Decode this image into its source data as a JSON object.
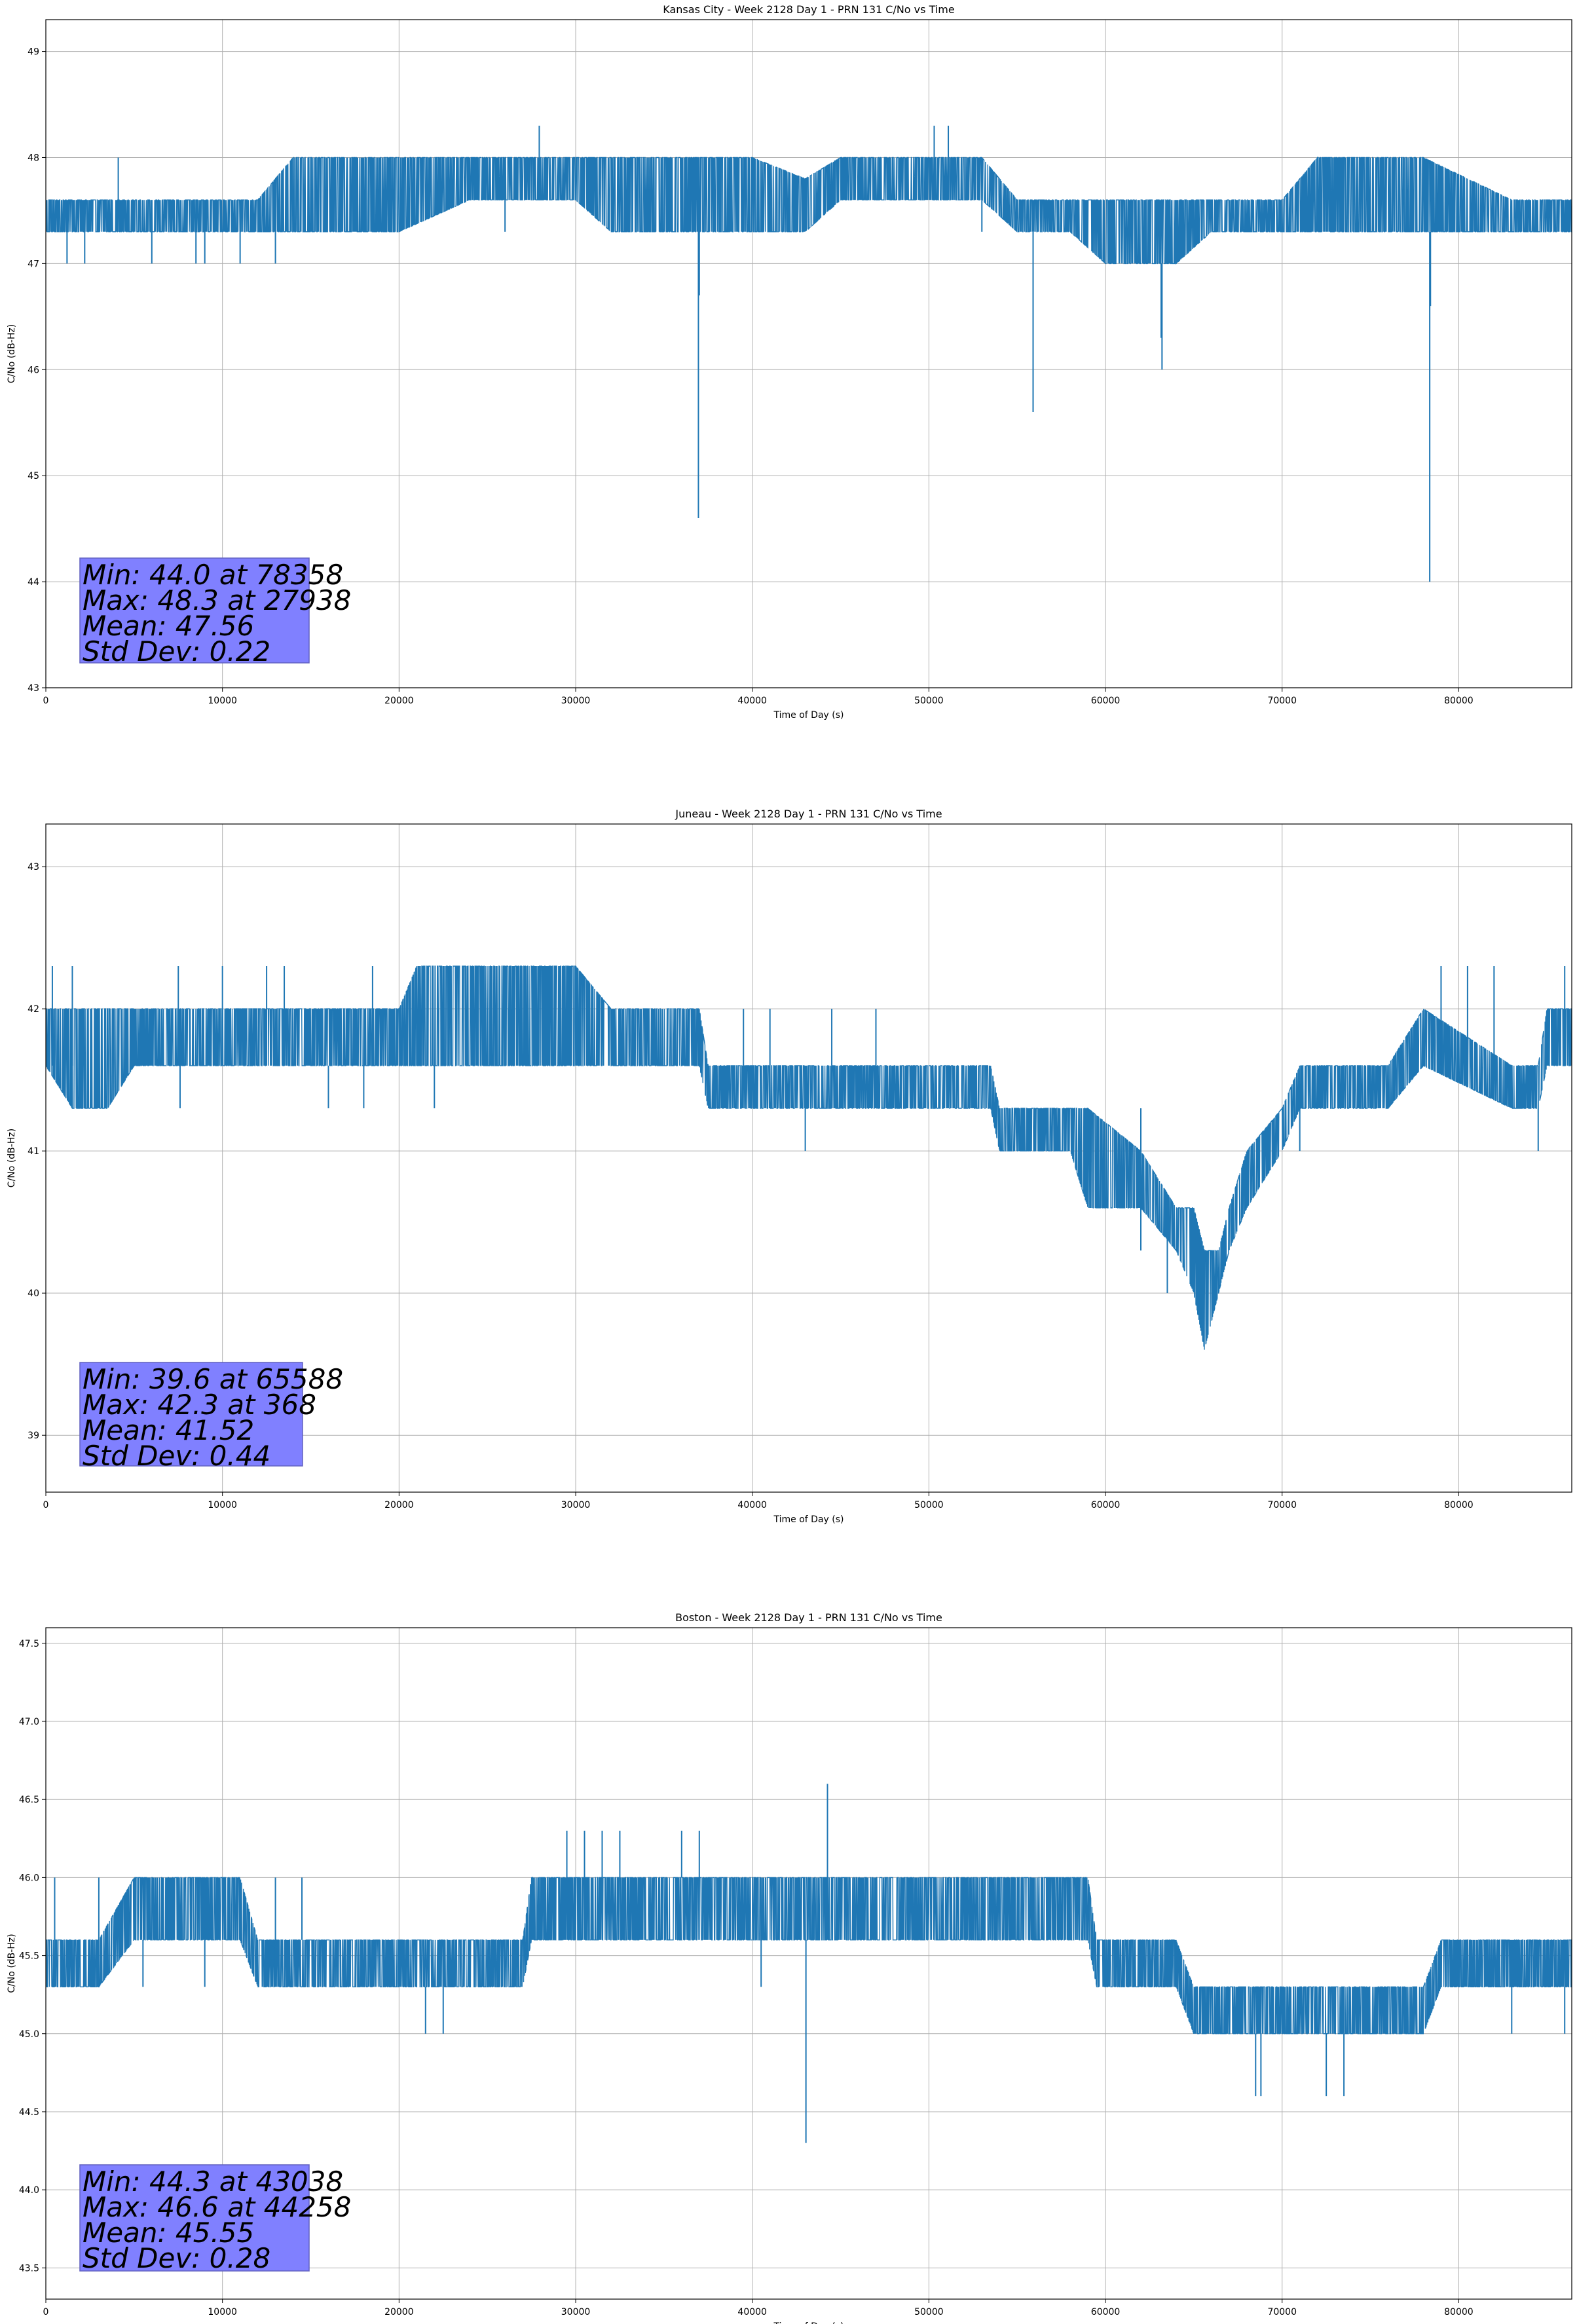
{
  "chart_data": [
    {
      "type": "line",
      "title": "Kansas City - Week 2128 Day 1 - PRN 131 C/No vs Time",
      "xlabel": "Time of Day (s)",
      "ylabel": "C/No (dB-Hz)",
      "xlim": [
        0,
        86400
      ],
      "ylim": [
        43,
        49.3
      ],
      "xticks": [
        0,
        10000,
        20000,
        30000,
        40000,
        50000,
        60000,
        70000,
        80000
      ],
      "yticks": [
        43,
        44,
        45,
        46,
        47,
        48,
        49
      ],
      "grid": true,
      "color": "#1f77b4",
      "stats": [
        "Min: 44.0 at 78358",
        "Max: 48.3 at 27938",
        "Mean: 47.56",
        "Std Dev: 0.22"
      ],
      "band": [
        [
          0,
          47.3,
          47.6
        ],
        [
          4000,
          47.3,
          47.6
        ],
        [
          12000,
          47.3,
          47.6
        ],
        [
          14000,
          47.3,
          48.0
        ],
        [
          20000,
          47.3,
          48.0
        ],
        [
          24000,
          47.6,
          48.0
        ],
        [
          30000,
          47.6,
          48.0
        ],
        [
          32000,
          47.3,
          48.0
        ],
        [
          36000,
          47.3,
          48.0
        ],
        [
          40000,
          47.3,
          48.0
        ],
        [
          43000,
          47.3,
          47.8
        ],
        [
          45000,
          47.6,
          48.0
        ],
        [
          50000,
          47.6,
          48.0
        ],
        [
          53000,
          47.6,
          48.0
        ],
        [
          55000,
          47.3,
          47.6
        ],
        [
          58000,
          47.3,
          47.6
        ],
        [
          60000,
          47.0,
          47.6
        ],
        [
          64000,
          47.0,
          47.6
        ],
        [
          66000,
          47.3,
          47.6
        ],
        [
          70000,
          47.3,
          47.6
        ],
        [
          72000,
          47.3,
          48.0
        ],
        [
          78000,
          47.3,
          48.0
        ],
        [
          83000,
          47.3,
          47.6
        ],
        [
          86400,
          47.3,
          47.6
        ]
      ],
      "spikes": [
        [
          1200,
          47.0,
          47.6
        ],
        [
          2200,
          47.0,
          47.6
        ],
        [
          4100,
          47.3,
          48.0
        ],
        [
          6000,
          47.0,
          47.6
        ],
        [
          8500,
          47.0,
          47.6
        ],
        [
          9000,
          47.0,
          47.6
        ],
        [
          11000,
          47.0,
          47.6
        ],
        [
          13000,
          47.0,
          47.6
        ],
        [
          27938,
          47.6,
          48.3
        ],
        [
          26000,
          47.3,
          47.6
        ],
        [
          36950,
          44.6,
          47.3
        ],
        [
          37000,
          46.7,
          47.3
        ],
        [
          50300,
          47.6,
          48.3
        ],
        [
          51100,
          47.6,
          48.3
        ],
        [
          53000,
          47.3,
          47.6
        ],
        [
          55900,
          45.6,
          47.3
        ],
        [
          63200,
          46.0,
          47.0
        ],
        [
          63150,
          46.3,
          47.0
        ],
        [
          78358,
          44.0,
          47.3
        ],
        [
          78400,
          46.6,
          47.3
        ]
      ]
    },
    {
      "type": "line",
      "title": "Juneau - Week 2128 Day 1 - PRN 131 C/No vs Time",
      "xlabel": "Time of Day (s)",
      "ylabel": "C/No (dB-Hz)",
      "xlim": [
        0,
        86400
      ],
      "ylim": [
        38.6,
        43.3
      ],
      "xticks": [
        0,
        10000,
        20000,
        30000,
        40000,
        50000,
        60000,
        70000,
        80000
      ],
      "yticks": [
        39,
        40,
        41,
        42,
        43
      ],
      "grid": true,
      "color": "#1f77b4",
      "stats": [
        "Min: 39.6 at 65588",
        "Max: 42.3 at 368",
        "Mean: 41.52",
        "Std Dev: 0.44"
      ],
      "band": [
        [
          0,
          41.6,
          42.0
        ],
        [
          1500,
          41.3,
          42.0
        ],
        [
          3500,
          41.3,
          42.0
        ],
        [
          5000,
          41.6,
          42.0
        ],
        [
          20000,
          41.6,
          42.0
        ],
        [
          21000,
          41.6,
          42.3
        ],
        [
          30000,
          41.6,
          42.3
        ],
        [
          32000,
          41.6,
          42.0
        ],
        [
          37000,
          41.6,
          42.0
        ],
        [
          37500,
          41.3,
          41.6
        ],
        [
          46000,
          41.3,
          41.6
        ],
        [
          50000,
          41.3,
          41.6
        ],
        [
          53500,
          41.3,
          41.6
        ],
        [
          54000,
          41.0,
          41.3
        ],
        [
          58000,
          41.0,
          41.3
        ],
        [
          59000,
          40.6,
          41.3
        ],
        [
          62000,
          40.6,
          41.0
        ],
        [
          64000,
          40.3,
          40.6
        ],
        [
          65000,
          40.0,
          40.6
        ],
        [
          65600,
          39.6,
          40.3
        ],
        [
          66400,
          40.0,
          40.3
        ],
        [
          67000,
          40.3,
          40.6
        ],
        [
          68000,
          40.6,
          41.0
        ],
        [
          70000,
          41.0,
          41.3
        ],
        [
          71000,
          41.3,
          41.6
        ],
        [
          74000,
          41.3,
          41.6
        ],
        [
          76000,
          41.3,
          41.6
        ],
        [
          78000,
          41.6,
          42.0
        ],
        [
          83000,
          41.3,
          41.6
        ],
        [
          84500,
          41.3,
          41.6
        ],
        [
          85000,
          41.6,
          42.0
        ],
        [
          86400,
          41.6,
          42.0
        ]
      ],
      "spikes": [
        [
          368,
          41.6,
          42.3
        ],
        [
          1500,
          41.6,
          42.3
        ],
        [
          7500,
          41.6,
          42.3
        ],
        [
          10000,
          41.6,
          42.3
        ],
        [
          12500,
          41.6,
          42.3
        ],
        [
          13500,
          41.6,
          42.3
        ],
        [
          18500,
          41.6,
          42.3
        ],
        [
          7600,
          41.3,
          41.6
        ],
        [
          16000,
          41.3,
          41.6
        ],
        [
          18000,
          41.3,
          41.6
        ],
        [
          22000,
          41.3,
          41.6
        ],
        [
          39500,
          41.6,
          42.0
        ],
        [
          41000,
          41.6,
          42.0
        ],
        [
          43000,
          41.0,
          41.3
        ],
        [
          44500,
          41.6,
          42.0
        ],
        [
          47000,
          41.6,
          42.0
        ],
        [
          62000,
          40.3,
          41.3
        ],
        [
          63500,
          40.0,
          40.6
        ],
        [
          71000,
          41.0,
          41.6
        ],
        [
          79000,
          41.6,
          42.3
        ],
        [
          80500,
          41.6,
          42.3
        ],
        [
          82000,
          41.6,
          42.3
        ],
        [
          84500,
          41.0,
          41.6
        ],
        [
          86000,
          41.6,
          42.3
        ]
      ]
    },
    {
      "type": "line",
      "title": "Boston - Week 2128 Day 1 - PRN 131 C/No vs Time",
      "xlabel": "Time of Day (s)",
      "ylabel": "C/No (dB-Hz)",
      "xlim": [
        0,
        86400
      ],
      "ylim": [
        43.3,
        47.6
      ],
      "xticks": [
        0,
        10000,
        20000,
        30000,
        40000,
        50000,
        60000,
        70000,
        80000
      ],
      "yticks": [
        43.5,
        44.0,
        44.5,
        45.0,
        45.5,
        46.0,
        46.5,
        47.0,
        47.5
      ],
      "grid": true,
      "color": "#1f77b4",
      "stats": [
        "Min: 44.3 at 43038",
        "Max: 46.6 at 44258",
        "Mean: 45.55",
        "Std Dev: 0.28"
      ],
      "band": [
        [
          0,
          45.3,
          45.6
        ],
        [
          3000,
          45.3,
          45.6
        ],
        [
          5000,
          45.6,
          46.0
        ],
        [
          11000,
          45.6,
          46.0
        ],
        [
          12000,
          45.3,
          45.6
        ],
        [
          27000,
          45.3,
          45.6
        ],
        [
          27500,
          45.6,
          46.0
        ],
        [
          29000,
          45.6,
          46.0
        ],
        [
          31000,
          45.6,
          46.0
        ],
        [
          38000,
          45.6,
          46.0
        ],
        [
          41000,
          45.6,
          46.0
        ],
        [
          44000,
          45.6,
          46.0
        ],
        [
          59000,
          45.6,
          46.0
        ],
        [
          59500,
          45.3,
          45.6
        ],
        [
          64000,
          45.3,
          45.6
        ],
        [
          65000,
          45.0,
          45.3
        ],
        [
          78000,
          45.0,
          45.3
        ],
        [
          79000,
          45.3,
          45.6
        ],
        [
          86400,
          45.3,
          45.6
        ]
      ],
      "spikes": [
        [
          500,
          45.6,
          46.0
        ],
        [
          3000,
          45.3,
          46.0
        ],
        [
          5500,
          45.3,
          45.6
        ],
        [
          9000,
          45.3,
          45.6
        ],
        [
          13000,
          45.3,
          46.0
        ],
        [
          14500,
          45.6,
          46.0
        ],
        [
          21500,
          45.0,
          45.3
        ],
        [
          22500,
          45.0,
          45.3
        ],
        [
          29500,
          46.0,
          46.3
        ],
        [
          30500,
          46.0,
          46.3
        ],
        [
          31500,
          46.0,
          46.3
        ],
        [
          32500,
          46.0,
          46.3
        ],
        [
          36000,
          46.0,
          46.3
        ],
        [
          37000,
          46.0,
          46.3
        ],
        [
          43038,
          44.3,
          45.6
        ],
        [
          44258,
          46.0,
          46.6
        ],
        [
          40500,
          45.3,
          45.6
        ],
        [
          58000,
          45.6,
          46.0
        ],
        [
          68500,
          44.6,
          45.0
        ],
        [
          68800,
          44.6,
          45.0
        ],
        [
          72500,
          44.6,
          45.0
        ],
        [
          73500,
          44.6,
          45.0
        ],
        [
          83000,
          45.0,
          45.3
        ],
        [
          86000,
          45.0,
          45.3
        ]
      ]
    }
  ]
}
